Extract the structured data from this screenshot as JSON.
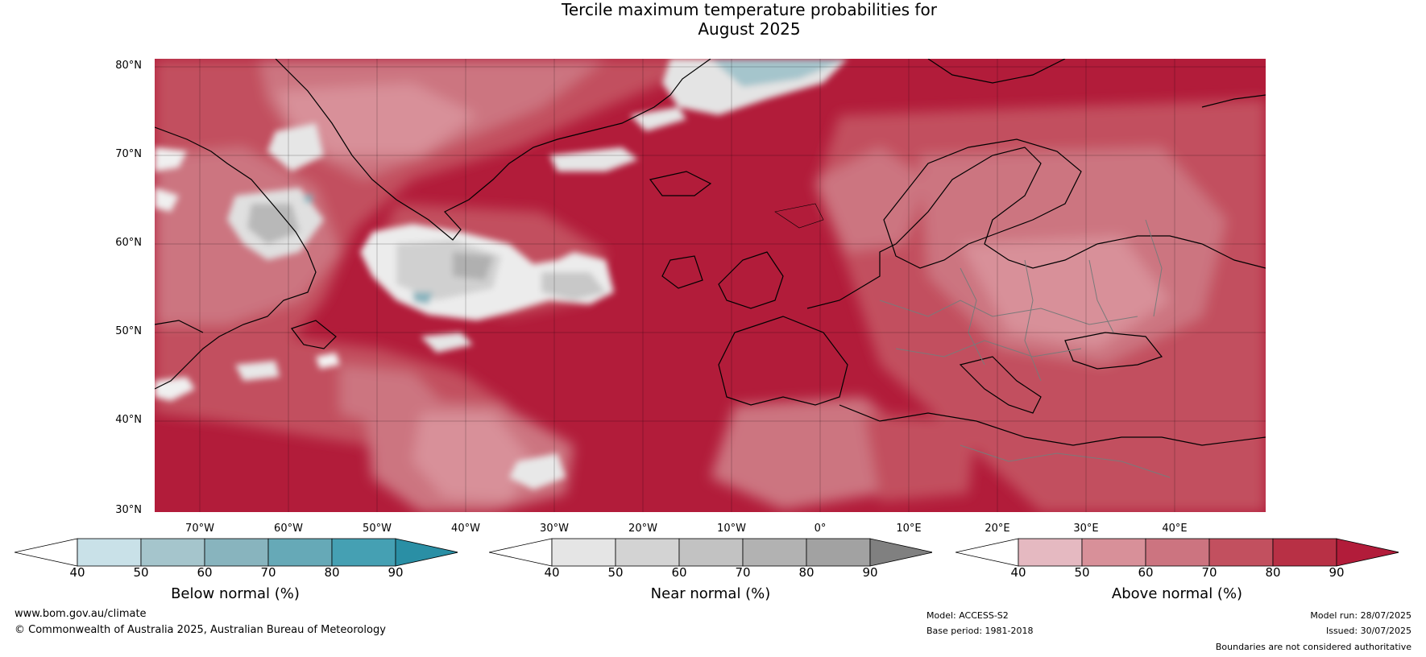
{
  "title": {
    "line1": "Tercile maximum temperature probabilities for",
    "line2": "August 2025"
  },
  "map": {
    "latitude_labels": [
      "80°N",
      "70°N",
      "60°N",
      "50°N",
      "40°N",
      "30°N"
    ],
    "longitude_labels": [
      "70°W",
      "60°W",
      "50°W",
      "40°W",
      "30°W",
      "20°W",
      "10°W",
      "0°",
      "10°E",
      "20°E",
      "30°E",
      "40°E"
    ]
  },
  "colorbars": [
    {
      "label": "Below normal (%)",
      "ticks": [
        "40",
        "50",
        "60",
        "70",
        "80",
        "90"
      ],
      "colors": [
        "#ffffff",
        "#c9e1e8",
        "#a5c5cc",
        "#88b4be",
        "#66a9b7",
        "#45a0b3",
        "#2a8fa5"
      ]
    },
    {
      "label": "Near normal (%)",
      "ticks": [
        "40",
        "50",
        "60",
        "70",
        "80",
        "90"
      ],
      "colors": [
        "#ffffff",
        "#e5e5e5",
        "#d3d3d3",
        "#c2c2c2",
        "#b2b2b2",
        "#a2a2a2",
        "#808080"
      ]
    },
    {
      "label": "Above normal (%)",
      "ticks": [
        "40",
        "50",
        "60",
        "70",
        "80",
        "90"
      ],
      "colors": [
        "#ffffff",
        "#e5b9c1",
        "#d89099",
        "#cc7480",
        "#c2505f",
        "#b83045",
        "#b21c3a"
      ]
    }
  ],
  "footer": {
    "website": "www.bom.gov.au/climate",
    "copyright": "© Commonwealth of Australia 2025, Australian Bureau of Meteorology",
    "model": "Model: ACCESS-S2",
    "base_period": "Base period: 1981-2018",
    "model_run": "Model run: 28/07/2025",
    "issued": "Issued: 30/07/2025",
    "disclaimer": "Boundaries are not considered authoritative"
  }
}
